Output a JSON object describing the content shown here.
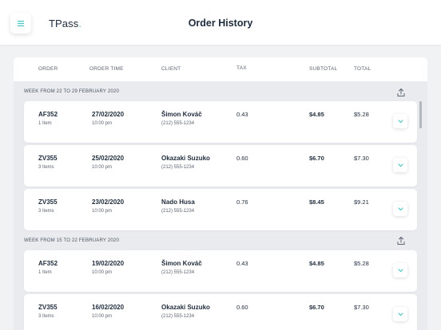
{
  "app": {
    "brand": "TPass",
    "brand_dot": ".",
    "page_title": "Order History",
    "menu_icon": "hamburger-icon",
    "accent": "#46c4c4"
  },
  "table": {
    "headers": {
      "order": "ORDER",
      "order_time": "ORDER TIME",
      "client": "CLIENT",
      "tax": "TAX",
      "subtotal": "SUBTOTAL",
      "total": "TOTAL"
    }
  },
  "groups": [
    {
      "label": "WEEK FROM 22 TO 29 FEBRUARY 2020",
      "orders": [
        {
          "order": "AF352",
          "items": "1 Item",
          "date": "27/02/2020",
          "time": "10:00 pm",
          "client": "Šimon Kováč",
          "phone": "(212) 555-1234",
          "tax": "0.43",
          "subtotal": "$4.85",
          "total": "$5.28"
        },
        {
          "order": "ZV355",
          "items": "3 Items",
          "date": "25/02/2020",
          "time": "10:00 pm",
          "client": "Okazaki Suzuko",
          "phone": "(212) 555-1234",
          "tax": "0.60",
          "subtotal": "$6.70",
          "total": "$7.30"
        },
        {
          "order": "ZV355",
          "items": "3 Items",
          "date": "23/02/2020",
          "time": "10:00 pm",
          "client": "Nado Husa",
          "phone": "(212) 555-1234",
          "tax": "0.76",
          "subtotal": "$8.45",
          "total": "$9.21"
        }
      ]
    },
    {
      "label": "WEEK FROM 15 TO 22 FEBRUARY 2020",
      "orders": [
        {
          "order": "AF352",
          "items": "1 Item",
          "date": "19/02/2020",
          "time": "10:00 pm",
          "client": "Šimon Kováč",
          "phone": "(212) 555-1234",
          "tax": "0.43",
          "subtotal": "$4.85",
          "total": "$5.28"
        },
        {
          "order": "ZV355",
          "items": "3 Items",
          "date": "16/02/2020",
          "time": "10:00 pm",
          "client": "Okazaki Suzuko",
          "phone": "(212) 555-1234",
          "tax": "0.60",
          "subtotal": "$6.70",
          "total": "$7.30"
        }
      ]
    }
  ]
}
